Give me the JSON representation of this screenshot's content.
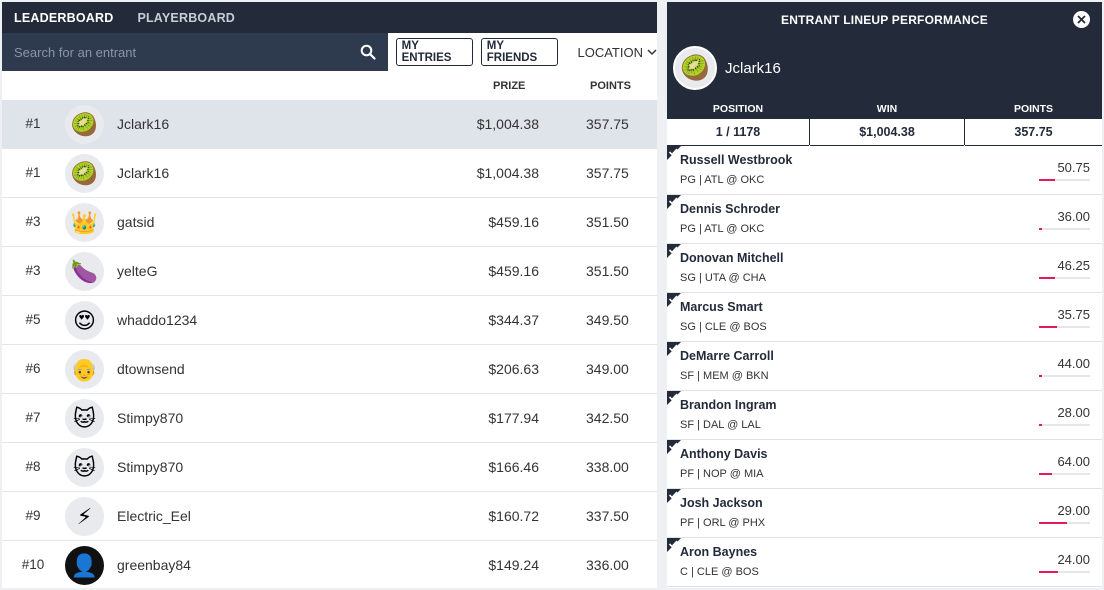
{
  "tabs": {
    "leaderboard": "LEADERBOARD",
    "playerboard": "PLAYERBOARD"
  },
  "search": {
    "placeholder": "Search for an entrant"
  },
  "buttons": {
    "my_entries": "MY ENTRIES",
    "my_friends": "MY FRIENDS",
    "location": "LOCATION"
  },
  "columns": {
    "prize": "PRIZE",
    "points": "POINTS"
  },
  "entrants": [
    {
      "rank": "#1",
      "name": "Jclark16",
      "prize": "$1,004.38",
      "points": "357.75",
      "avatar": "🥝",
      "highlight": true
    },
    {
      "rank": "#1",
      "name": "Jclark16",
      "prize": "$1,004.38",
      "points": "357.75",
      "avatar": "🥝"
    },
    {
      "rank": "#3",
      "name": "gatsid",
      "prize": "$459.16",
      "points": "351.50",
      "avatar": "👑"
    },
    {
      "rank": "#3",
      "name": "yelteG",
      "prize": "$459.16",
      "points": "351.50",
      "avatar": "🍆"
    },
    {
      "rank": "#5",
      "name": "whaddo1234",
      "prize": "$344.37",
      "points": "349.50",
      "avatar": "😍"
    },
    {
      "rank": "#6",
      "name": "dtownsend",
      "prize": "$206.63",
      "points": "349.00",
      "avatar": "👴"
    },
    {
      "rank": "#7",
      "name": "Stimpy870",
      "prize": "$177.94",
      "points": "342.50",
      "avatar": "🐱"
    },
    {
      "rank": "#8",
      "name": "Stimpy870",
      "prize": "$166.46",
      "points": "338.00",
      "avatar": "🐱"
    },
    {
      "rank": "#9",
      "name": "Electric_Eel",
      "prize": "$160.72",
      "points": "337.50",
      "avatar": "⚡"
    },
    {
      "rank": "#10",
      "name": "greenbay84",
      "prize": "$149.24",
      "points": "336.00",
      "avatar": "👤",
      "dark": true
    }
  ],
  "panel": {
    "title": "ENTRANT LINEUP PERFORMANCE",
    "entrant_name": "Jclark16",
    "avatar": "🥝",
    "stats": [
      {
        "label": "POSITION",
        "value": "1 / 1178"
      },
      {
        "label": "WIN",
        "value": "$1,004.38"
      },
      {
        "label": "POINTS",
        "value": "357.75"
      }
    ],
    "players": [
      {
        "name": "Russell Westbrook",
        "info": "PG | ATL @ OKC",
        "points": "50.75",
        "fraction": 0.32
      },
      {
        "name": "Dennis Schroder",
        "info": "PG | ATL @ OKC",
        "points": "36.00",
        "fraction": 0.05
      },
      {
        "name": "Donovan Mitchell",
        "info": "SG | UTA @ CHA",
        "points": "46.25",
        "fraction": 0.32
      },
      {
        "name": "Marcus Smart",
        "info": "SG | CLE @ BOS",
        "points": "35.75",
        "fraction": 0.36
      },
      {
        "name": "DeMarre Carroll",
        "info": "SF | MEM @ BKN",
        "points": "44.00",
        "fraction": 0.06
      },
      {
        "name": "Brandon Ingram",
        "info": "SF | DAL @ LAL",
        "points": "28.00",
        "fraction": 0.06
      },
      {
        "name": "Anthony Davis",
        "info": "PF | NOP @ MIA",
        "points": "64.00",
        "fraction": 0.26
      },
      {
        "name": "Josh Jackson",
        "info": "PF | ORL @ PHX",
        "points": "29.00",
        "fraction": 0.55
      },
      {
        "name": "Aron Baynes",
        "info": "C | CLE @ BOS",
        "points": "24.00",
        "fraction": 0.38
      }
    ]
  },
  "colors": {
    "navy": "#232b3a",
    "search_bg": "#2e3a4e",
    "accent": "#e31b5b",
    "highlight_row": "#dfe3ea"
  }
}
